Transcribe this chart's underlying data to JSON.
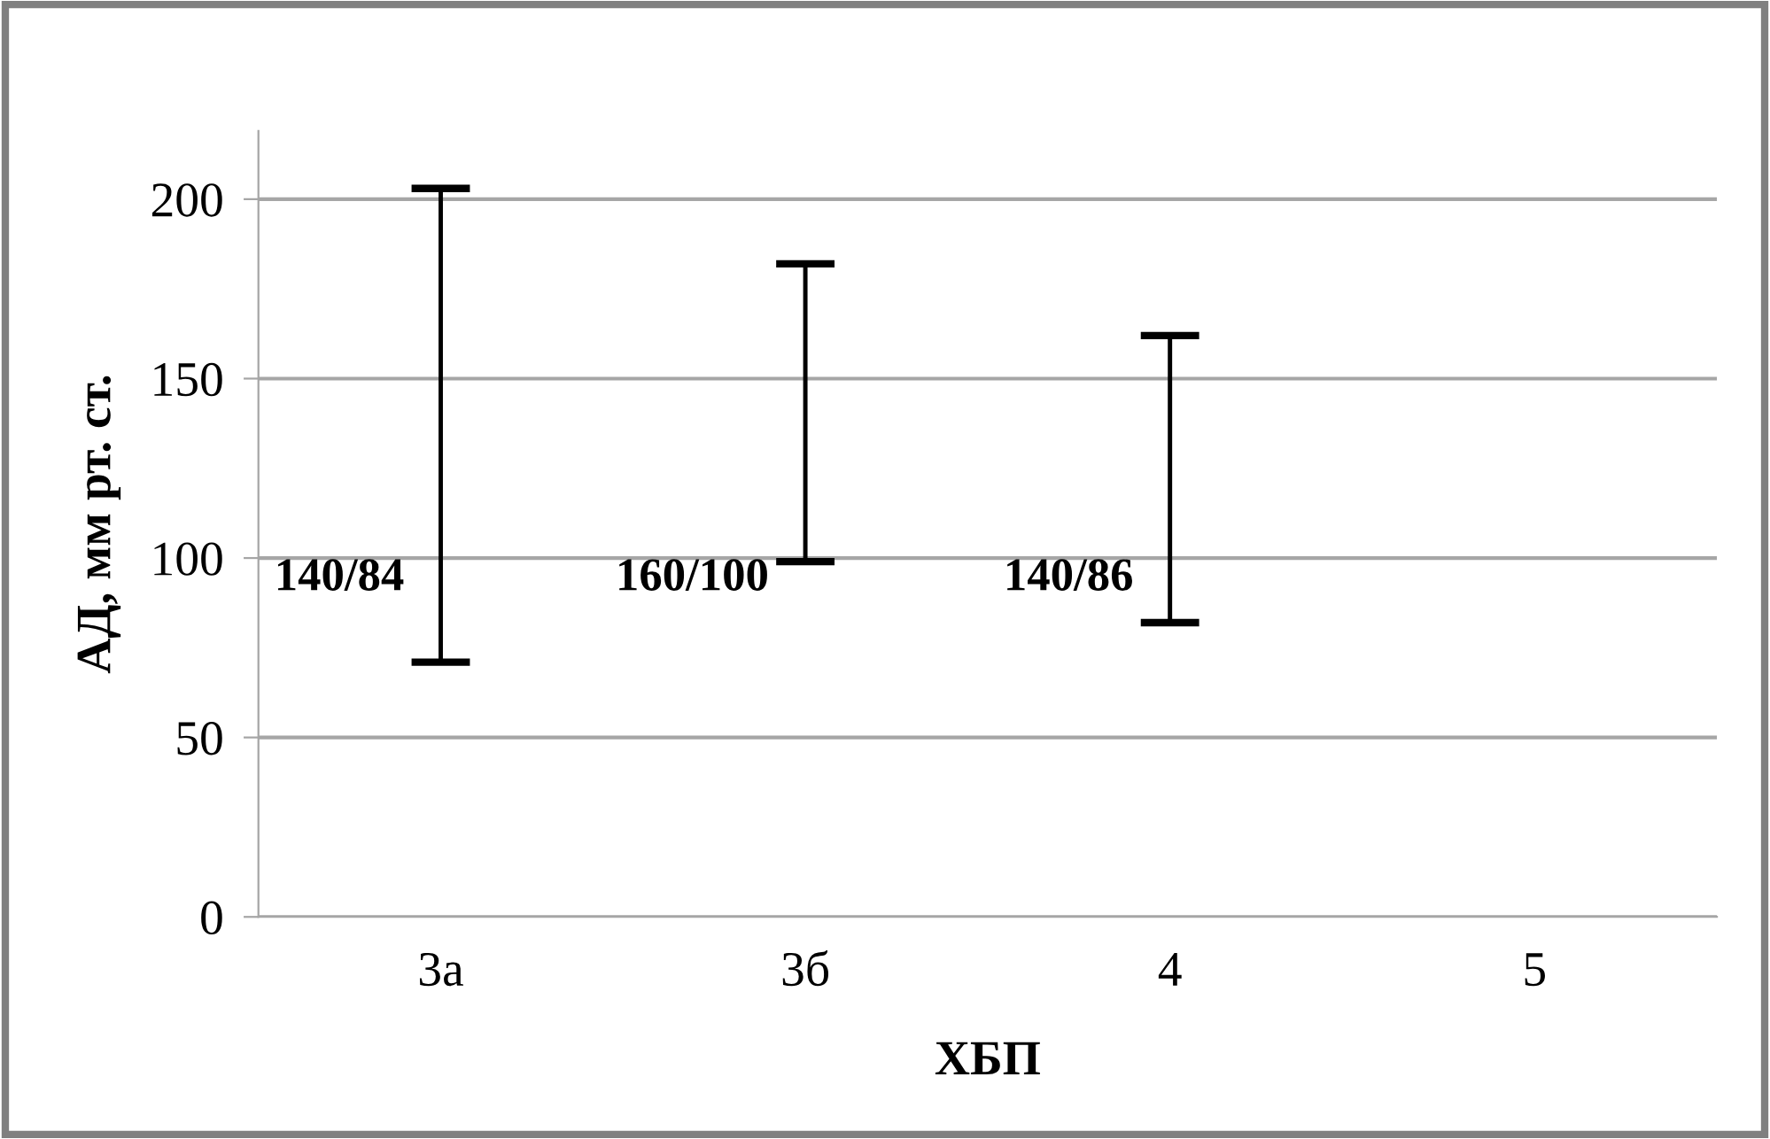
{
  "chart_data": {
    "type": "bar",
    "xlabel": "ХБП",
    "ylabel": "АД, мм рт. ст.",
    "categories": [
      "3а",
      "3б",
      "4",
      "5"
    ],
    "base": [
      71,
      99,
      82,
      null
    ],
    "values": [
      132,
      83,
      80,
      null
    ],
    "color": "#000000",
    "ylim": [
      0,
      219
    ],
    "yticks": [
      0,
      50,
      100,
      150,
      200
    ],
    "grid": "y",
    "annotations": [
      "140/84",
      "160/100",
      "140/86"
    ]
  }
}
